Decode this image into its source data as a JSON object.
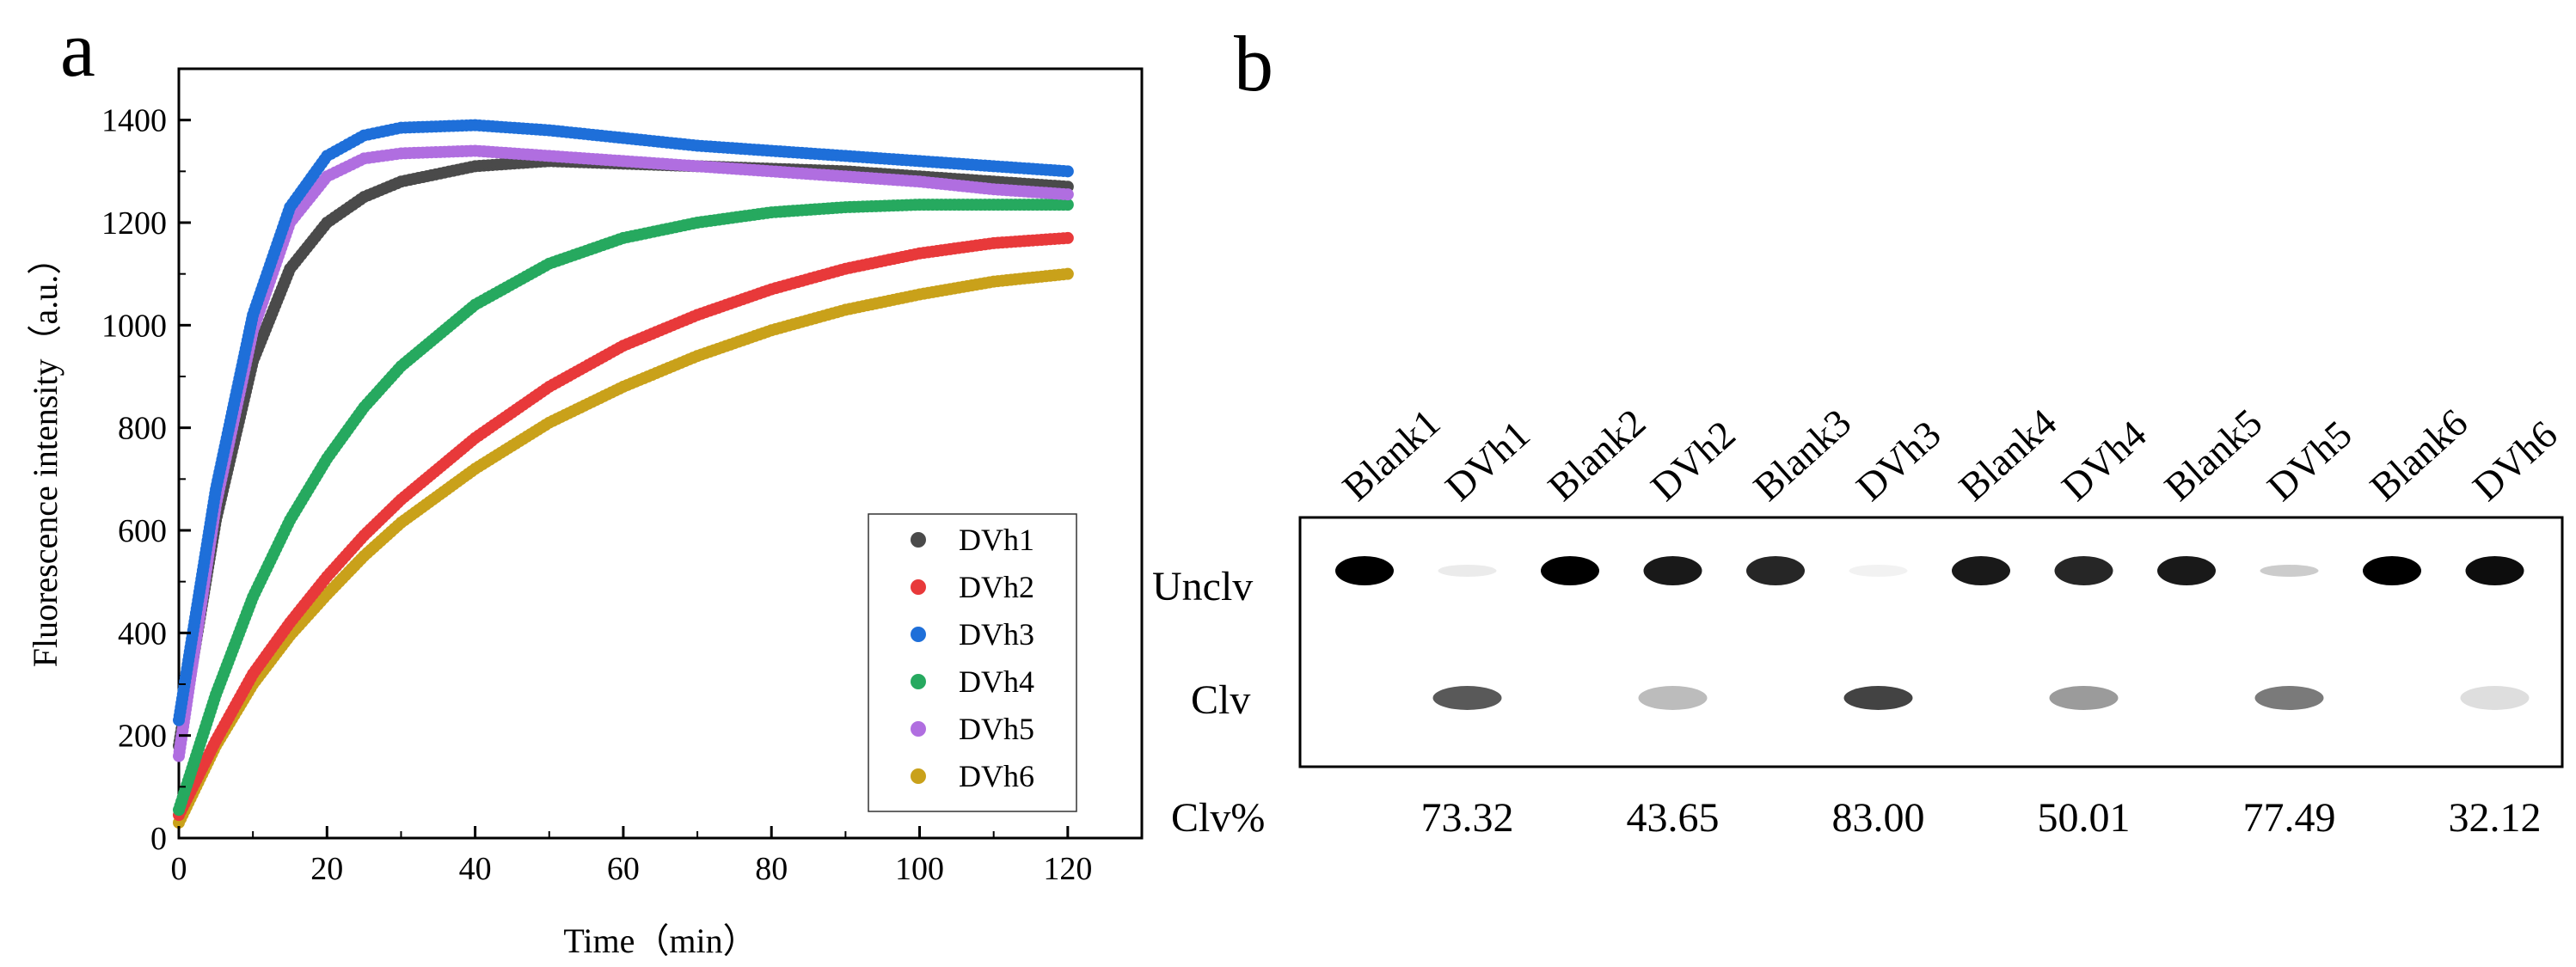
{
  "panel_a": {
    "letter": "a"
  },
  "panel_b": {
    "letter": "b",
    "lanes": [
      "Blank1",
      "DVh1",
      "Blank2",
      "DVh2",
      "Blank3",
      "DVh3",
      "Blank4",
      "DVh4",
      "Blank5",
      "DVh5",
      "Blank6",
      "DVh6"
    ],
    "row_labels": {
      "uncleaved": "Unclv",
      "cleaved": "Clv",
      "percent": "Clv%"
    },
    "band_intensity": {
      "uncleaved": [
        1.0,
        0.08,
        1.0,
        0.9,
        0.85,
        0.05,
        0.9,
        0.85,
        0.9,
        0.2,
        1.0,
        0.95
      ],
      "cleaved": [
        0,
        0.75,
        0,
        0.3,
        0,
        0.85,
        0,
        0.45,
        0,
        0.6,
        0,
        0.15
      ]
    },
    "clv_percent": [
      {
        "lane": "DVh1",
        "value": "73.32"
      },
      {
        "lane": "DVh2",
        "value": "43.65"
      },
      {
        "lane": "DVh3",
        "value": "83.00"
      },
      {
        "lane": "DVh4",
        "value": "50.01"
      },
      {
        "lane": "DVh5",
        "value": "77.49"
      },
      {
        "lane": "DVh6",
        "value": "32.12"
      }
    ]
  },
  "chart_data": {
    "type": "scatter",
    "xlabel": "Time（min）",
    "ylabel": "Fluorescence intensity（a.u.）",
    "xlim": [
      0,
      130
    ],
    "ylim": [
      0,
      1500
    ],
    "xticks": [
      0,
      20,
      40,
      60,
      80,
      100,
      120
    ],
    "yticks": [
      0,
      200,
      400,
      600,
      800,
      1000,
      1200,
      1400
    ],
    "legend_position": "bottom-right",
    "series": [
      {
        "name": "DVh1",
        "color": "#4a4a4a",
        "x": [
          0,
          5,
          10,
          15,
          20,
          25,
          30,
          40,
          50,
          60,
          70,
          80,
          90,
          100,
          110,
          120
        ],
        "y": [
          180,
          620,
          930,
          1110,
          1200,
          1250,
          1280,
          1310,
          1320,
          1315,
          1310,
          1305,
          1300,
          1290,
          1280,
          1270
        ]
      },
      {
        "name": "DVh2",
        "color": "#e8393a",
        "x": [
          0,
          5,
          10,
          15,
          20,
          25,
          30,
          40,
          50,
          60,
          70,
          80,
          90,
          100,
          110,
          120
        ],
        "y": [
          45,
          190,
          320,
          420,
          510,
          590,
          660,
          780,
          880,
          960,
          1020,
          1070,
          1110,
          1140,
          1160,
          1170
        ]
      },
      {
        "name": "DVh3",
        "color": "#1e6fd9",
        "x": [
          0,
          5,
          10,
          15,
          20,
          25,
          30,
          40,
          50,
          60,
          70,
          80,
          90,
          100,
          110,
          120
        ],
        "y": [
          230,
          680,
          1020,
          1230,
          1330,
          1370,
          1385,
          1390,
          1380,
          1365,
          1350,
          1340,
          1330,
          1320,
          1310,
          1300
        ]
      },
      {
        "name": "DVh4",
        "color": "#26a95f",
        "x": [
          0,
          5,
          10,
          15,
          20,
          25,
          30,
          40,
          50,
          60,
          70,
          80,
          90,
          100,
          110,
          120
        ],
        "y": [
          55,
          280,
          470,
          620,
          740,
          840,
          920,
          1040,
          1120,
          1170,
          1200,
          1220,
          1230,
          1235,
          1235,
          1235
        ]
      },
      {
        "name": "DVh5",
        "color": "#b06ee0",
        "x": [
          0,
          5,
          10,
          15,
          20,
          25,
          30,
          40,
          50,
          60,
          70,
          80,
          90,
          100,
          110,
          120
        ],
        "y": [
          160,
          650,
          990,
          1200,
          1290,
          1325,
          1335,
          1340,
          1330,
          1320,
          1310,
          1300,
          1290,
          1280,
          1265,
          1255
        ]
      },
      {
        "name": "DVh6",
        "color": "#c9a11a",
        "x": [
          0,
          5,
          10,
          15,
          20,
          25,
          30,
          40,
          50,
          60,
          70,
          80,
          90,
          100,
          110,
          120
        ],
        "y": [
          30,
          180,
          300,
          395,
          475,
          550,
          615,
          720,
          810,
          880,
          940,
          990,
          1030,
          1060,
          1085,
          1100
        ]
      }
    ]
  }
}
